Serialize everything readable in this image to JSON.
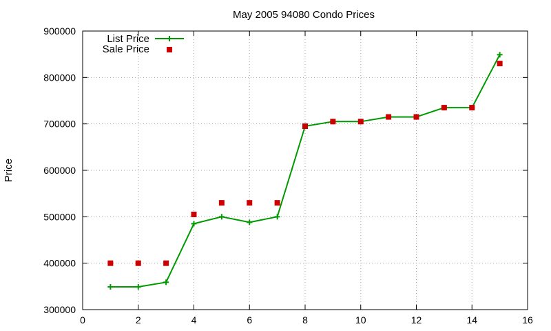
{
  "chart_data": {
    "type": "line",
    "title": "May 2005 94080 Condo Prices",
    "xlabel": "",
    "ylabel": "Price",
    "xlim": [
      0,
      16
    ],
    "ylim": [
      300000,
      900000
    ],
    "xticks": [
      0,
      2,
      4,
      6,
      8,
      10,
      12,
      14,
      16
    ],
    "yticks": [
      300000,
      400000,
      500000,
      600000,
      700000,
      800000,
      900000
    ],
    "grid": true,
    "legend_position": "top-left",
    "series": [
      {
        "name": "List Price",
        "style": "line with plus markers",
        "color": "#009900",
        "x": [
          1,
          2,
          3,
          4,
          5,
          6,
          7,
          8,
          9,
          10,
          11,
          12,
          13,
          14,
          15
        ],
        "values": [
          349000,
          349000,
          359000,
          485000,
          500000,
          488000,
          500000,
          695000,
          705000,
          705000,
          715000,
          715000,
          735000,
          735000,
          849000
        ]
      },
      {
        "name": "Sale Price",
        "style": "square markers",
        "color": "#cc0000",
        "x": [
          1,
          2,
          3,
          4,
          5,
          6,
          7,
          8,
          9,
          10,
          11,
          12,
          13,
          14,
          15
        ],
        "values": [
          400000,
          400000,
          400000,
          505000,
          530000,
          530000,
          530000,
          695000,
          705000,
          705000,
          715000,
          715000,
          735000,
          735000,
          830000
        ]
      }
    ]
  }
}
